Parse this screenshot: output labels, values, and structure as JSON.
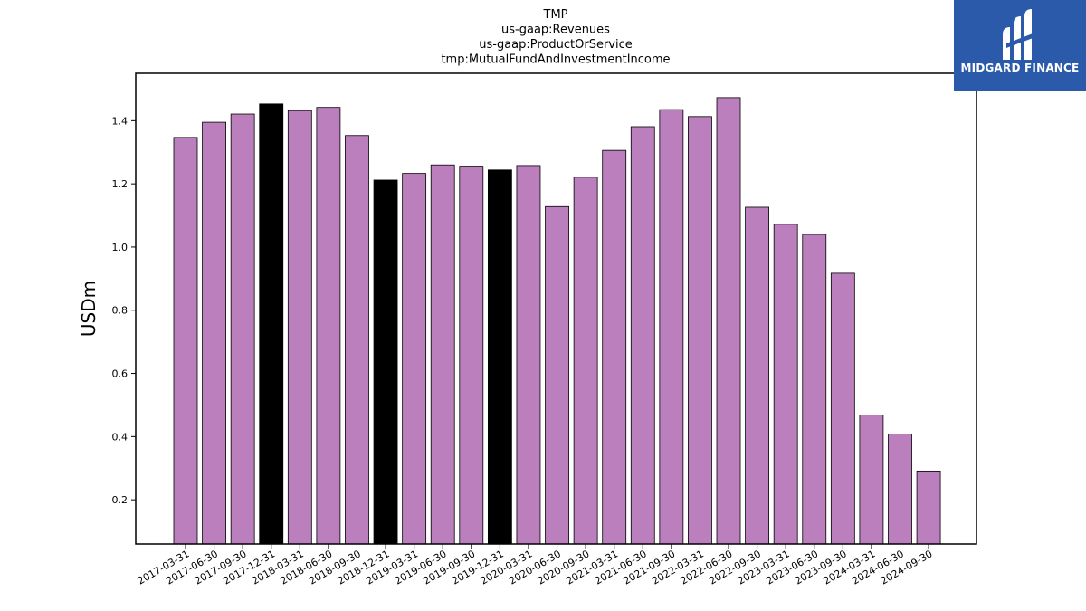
{
  "chart_data": {
    "type": "bar",
    "title_lines": [
      "TMP",
      "us-gaap:Revenues",
      "us-gaap:ProductOrService",
      "tmp:MutualFundAndInvestmentIncome"
    ],
    "ylabel": "USDm",
    "xlabel": "",
    "ylim": [
      0.06,
      1.55
    ],
    "yticks": [
      0.2,
      0.4,
      0.6,
      0.8,
      1.0,
      1.2,
      1.4
    ],
    "ytick_labels": [
      "0.2",
      "0.4",
      "0.6",
      "0.8",
      "1.0",
      "1.2",
      "1.4"
    ],
    "categories": [
      "2017-03-31",
      "2017-06-30",
      "2017-09-30",
      "2017-12-31",
      "2018-03-31",
      "2018-06-30",
      "2018-09-30",
      "2018-12-31",
      "2019-03-31",
      "2019-06-30",
      "2019-09-30",
      "2019-12-31",
      "2020-03-31",
      "2020-06-30",
      "2020-09-30",
      "2021-03-31",
      "2021-06-30",
      "2021-09-30",
      "2022-03-31",
      "2022-06-30",
      "2022-09-30",
      "2023-03-31",
      "2023-06-30",
      "2023-09-30",
      "2024-03-31",
      "2024-06-30",
      "2024-09-30"
    ],
    "values": [
      1.347,
      1.395,
      1.421,
      1.453,
      1.432,
      1.442,
      1.353,
      1.212,
      1.233,
      1.26,
      1.256,
      1.244,
      1.258,
      1.128,
      1.221,
      1.306,
      1.381,
      1.435,
      1.413,
      1.473,
      1.126,
      1.072,
      1.04,
      0.917,
      0.468,
      0.408,
      0.291
    ],
    "highlighted": [
      false,
      false,
      false,
      true,
      false,
      false,
      false,
      true,
      false,
      false,
      false,
      true,
      false,
      false,
      false,
      false,
      false,
      false,
      false,
      false,
      false,
      false,
      false,
      false,
      false,
      false,
      false
    ],
    "colors": {
      "bar": "#bc7fbd",
      "highlight": "#000000",
      "edge": "#000000"
    }
  },
  "logo": {
    "text": "MIDGARD FINANCE",
    "background": "#2b5aaa"
  }
}
